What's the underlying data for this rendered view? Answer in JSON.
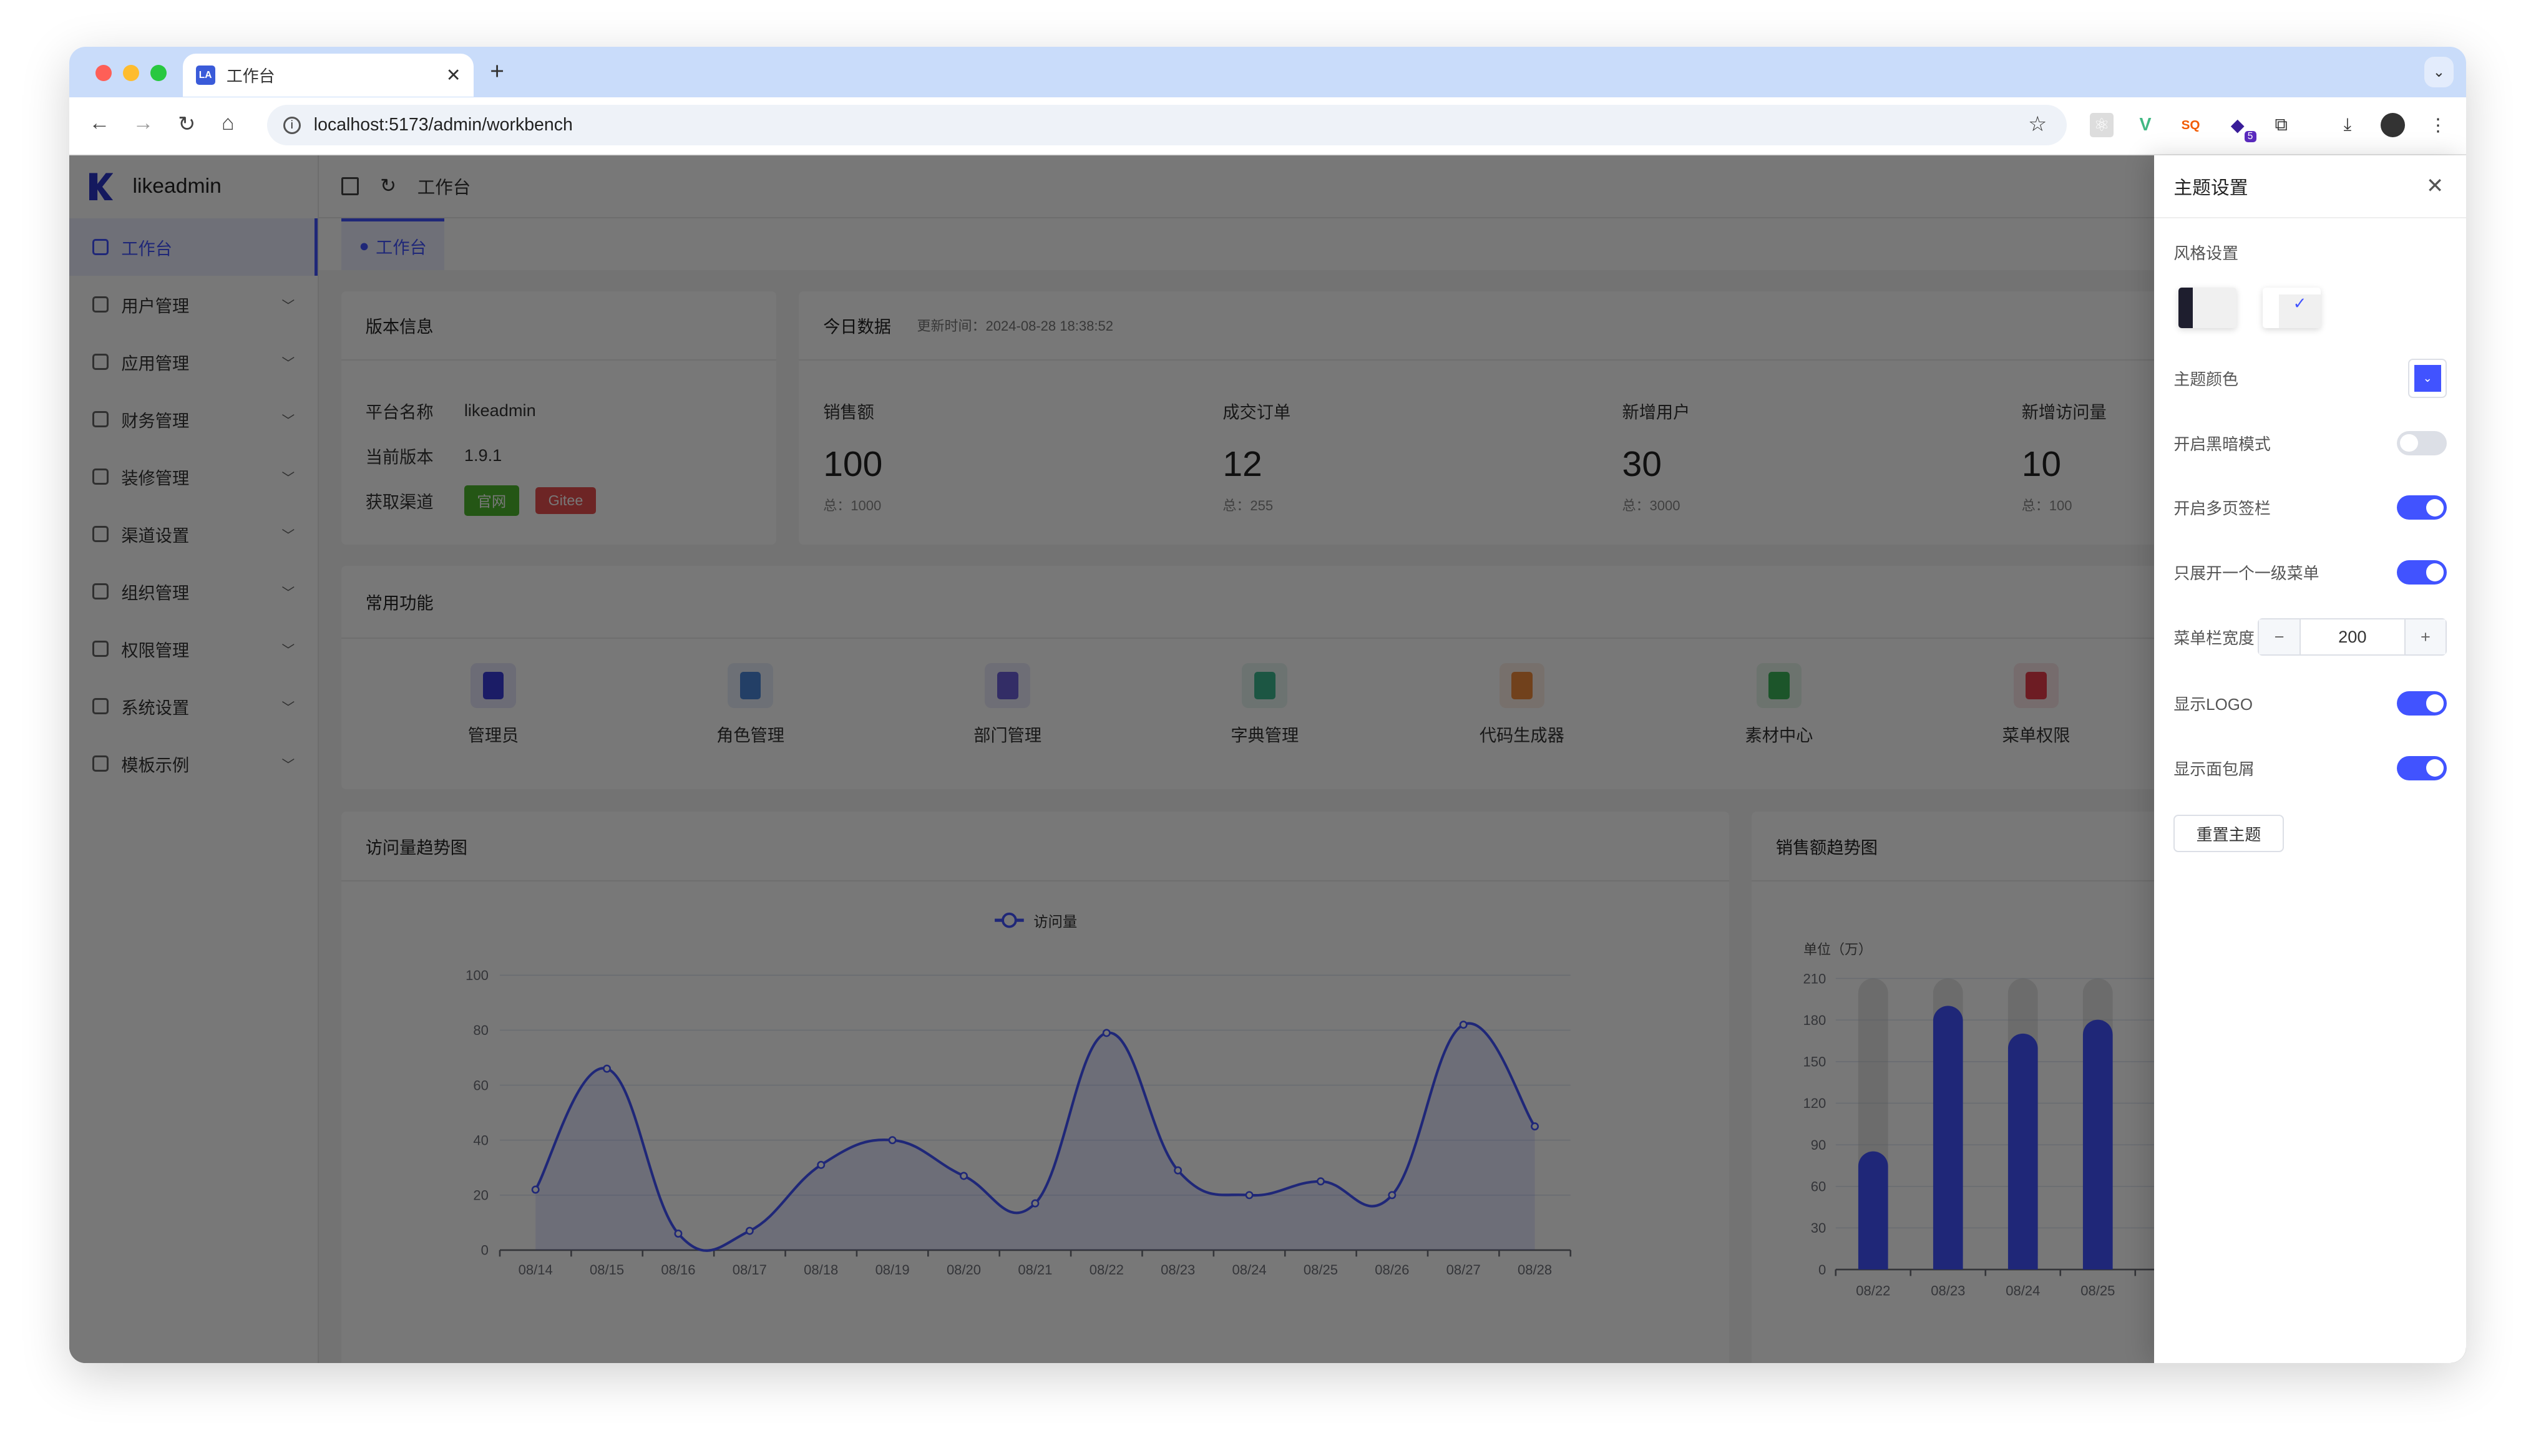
{
  "browser": {
    "tab_title": "工作台",
    "tab_favicon": "LA",
    "url": "localhost:5173/admin/workbench",
    "extensions": [
      "react-devtools-icon",
      "vue-devtools-icon",
      "sq-icon",
      "extension-badge-icon",
      "puzzle-icon"
    ],
    "extension_badge": "5"
  },
  "app": {
    "logo_text": "likeadmin",
    "sidebar": [
      {
        "label": "工作台",
        "active": true
      },
      {
        "label": "用户管理"
      },
      {
        "label": "应用管理"
      },
      {
        "label": "财务管理"
      },
      {
        "label": "装修管理"
      },
      {
        "label": "渠道设置"
      },
      {
        "label": "组织管理"
      },
      {
        "label": "权限管理"
      },
      {
        "label": "系统设置"
      },
      {
        "label": "模板示例"
      }
    ],
    "breadcrumb": "工作台",
    "page_tab": "工作台",
    "accent_color": "#4153ff"
  },
  "version_card": {
    "title": "版本信息",
    "rows": [
      {
        "label": "平台名称",
        "value": "likeadmin"
      },
      {
        "label": "当前版本",
        "value": "1.9.1"
      },
      {
        "label": "获取渠道"
      }
    ],
    "tags": [
      {
        "label": "官网",
        "color": "#4cb82d"
      },
      {
        "label": "Gitee",
        "color": "#e84f4f"
      }
    ]
  },
  "today_card": {
    "title": "今日数据",
    "updated": "更新时间：2024-08-28 18:38:52",
    "stats": [
      {
        "label": "销售额",
        "value": "100",
        "total": "总：1000"
      },
      {
        "label": "成交订单",
        "value": "12",
        "total": "总：255"
      },
      {
        "label": "新增用户",
        "value": "30",
        "total": "总：3000"
      },
      {
        "label": "新增访问量",
        "value": "10",
        "total": "总：100"
      }
    ]
  },
  "functions_card": {
    "title": "常用功能",
    "items": [
      {
        "label": "管理员",
        "color": "#3a3bd8"
      },
      {
        "label": "角色管理",
        "color": "#4a86d8"
      },
      {
        "label": "部门管理",
        "color": "#6c5fd8"
      },
      {
        "label": "字典管理",
        "color": "#3bb78f"
      },
      {
        "label": "代码生成器",
        "color": "#f08a3c"
      },
      {
        "label": "素材中心",
        "color": "#3bb45a"
      },
      {
        "label": "菜单权限",
        "color": "#e83b4a"
      }
    ]
  },
  "chart_data": [
    {
      "type": "line",
      "title": "访问量趋势图",
      "smooth": true,
      "area": true,
      "categories": [
        "08/14",
        "08/15",
        "08/16",
        "08/17",
        "08/18",
        "08/19",
        "08/20",
        "08/21",
        "08/22",
        "08/23",
        "08/24",
        "08/25",
        "08/26",
        "08/27",
        "08/28"
      ],
      "series": [
        {
          "name": "访问量",
          "values": [
            22,
            66,
            6,
            7,
            31,
            40,
            27,
            17,
            79,
            29,
            20,
            25,
            20,
            82,
            45
          ]
        }
      ],
      "yticks": [
        0,
        20,
        40,
        60,
        80,
        100
      ],
      "ylim": [
        0,
        100
      ],
      "legend": "top-center",
      "grid": true
    },
    {
      "type": "bar",
      "title": "销售额趋势图",
      "ylabel": "单位（万）",
      "categories": [
        "08/22",
        "08/23",
        "08/24",
        "08/25"
      ],
      "values": [
        85,
        190,
        170,
        180
      ],
      "yticks": [
        0,
        30,
        60,
        90,
        120,
        150,
        180,
        210
      ],
      "ylim": [
        0,
        210
      ],
      "background_bars": true,
      "grid": true
    }
  ],
  "theme_drawer": {
    "title": "主题设置",
    "style_label": "风格设置",
    "theme_color_label": "主题颜色",
    "theme_color": "#4153ff",
    "toggles": [
      {
        "label": "开启黑暗模式",
        "on": false
      },
      {
        "label": "开启多页签栏",
        "on": true
      },
      {
        "label": "只展开一个一级菜单",
        "on": true
      }
    ],
    "menu_width_label": "菜单栏宽度",
    "menu_width": "200",
    "toggles2": [
      {
        "label": "显示LOGO",
        "on": true
      },
      {
        "label": "显示面包屑",
        "on": true
      }
    ],
    "reset_label": "重置主题"
  }
}
